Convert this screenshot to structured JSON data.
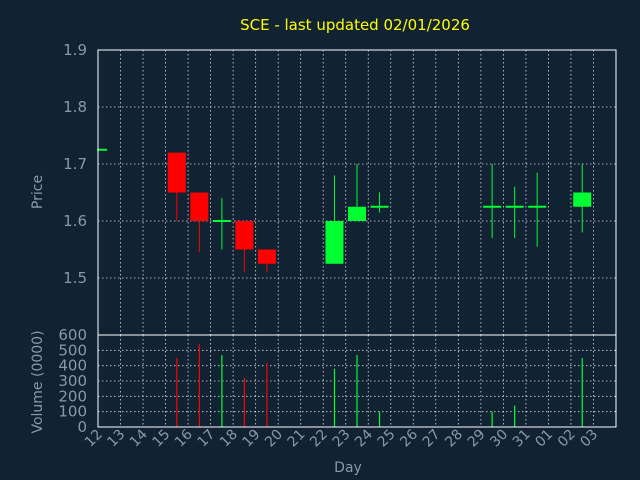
{
  "chart_data": {
    "type": "candlestick",
    "title": "SCE - last updated 02/01/2026",
    "xlabel": "Day",
    "days": [
      "12",
      "13",
      "14",
      "15",
      "16",
      "17",
      "18",
      "19",
      "20",
      "21",
      "22",
      "23",
      "24",
      "25",
      "26",
      "27",
      "28",
      "29",
      "30",
      "31",
      "01",
      "02",
      "03"
    ],
    "price": {
      "ylabel": "Price",
      "ylim": [
        1.4,
        1.9
      ],
      "yticks": [
        "1.5",
        "1.6",
        "1.7",
        "1.8",
        "1.9"
      ],
      "candles": [
        {
          "day": "12",
          "open": 1.725,
          "high": 1.725,
          "low": 1.725,
          "close": 1.725
        },
        {
          "day": "15",
          "open": 1.72,
          "high": 1.72,
          "low": 1.6,
          "close": 1.65
        },
        {
          "day": "16",
          "open": 1.65,
          "high": 1.65,
          "low": 1.545,
          "close": 1.6
        },
        {
          "day": "17",
          "open": 1.6,
          "high": 1.64,
          "low": 1.55,
          "close": 1.6
        },
        {
          "day": "18",
          "open": 1.6,
          "high": 1.6,
          "low": 1.51,
          "close": 1.55
        },
        {
          "day": "19",
          "open": 1.55,
          "high": 1.55,
          "low": 1.51,
          "close": 1.525
        },
        {
          "day": "22",
          "open": 1.525,
          "high": 1.68,
          "low": 1.525,
          "close": 1.6
        },
        {
          "day": "23",
          "open": 1.6,
          "high": 1.7,
          "low": 1.6,
          "close": 1.625
        },
        {
          "day": "24",
          "open": 1.625,
          "high": 1.65,
          "low": 1.615,
          "close": 1.625
        },
        {
          "day": "29",
          "open": 1.625,
          "high": 1.7,
          "low": 1.57,
          "close": 1.625
        },
        {
          "day": "30",
          "open": 1.625,
          "high": 1.66,
          "low": 1.57,
          "close": 1.625
        },
        {
          "day": "31",
          "open": 1.625,
          "high": 1.685,
          "low": 1.555,
          "close": 1.625
        },
        {
          "day": "02",
          "open": 1.625,
          "high": 1.7,
          "low": 1.58,
          "close": 1.65
        }
      ]
    },
    "volume": {
      "ylabel": "Volume (0000)",
      "ylim": [
        0,
        600
      ],
      "yticks": [
        "0",
        "100",
        "200",
        "300",
        "400",
        "500",
        "600"
      ],
      "bars": [
        {
          "day": "15",
          "value": 450,
          "dir": "down"
        },
        {
          "day": "16",
          "value": 540,
          "dir": "down"
        },
        {
          "day": "17",
          "value": 470,
          "dir": "up"
        },
        {
          "day": "18",
          "value": 320,
          "dir": "down"
        },
        {
          "day": "19",
          "value": 420,
          "dir": "down"
        },
        {
          "day": "22",
          "value": 380,
          "dir": "up"
        },
        {
          "day": "23",
          "value": 470,
          "dir": "up"
        },
        {
          "day": "24",
          "value": 100,
          "dir": "up"
        },
        {
          "day": "29",
          "value": 100,
          "dir": "up"
        },
        {
          "day": "30",
          "value": 140,
          "dir": "up"
        },
        {
          "day": "02",
          "value": 450,
          "dir": "up"
        }
      ]
    },
    "colors": {
      "background": "#112233",
      "up": "#00ff33",
      "down": "#ff0000",
      "title": "#ffff00",
      "axis_text": "#8899aa",
      "grid": "#ffffff"
    }
  }
}
